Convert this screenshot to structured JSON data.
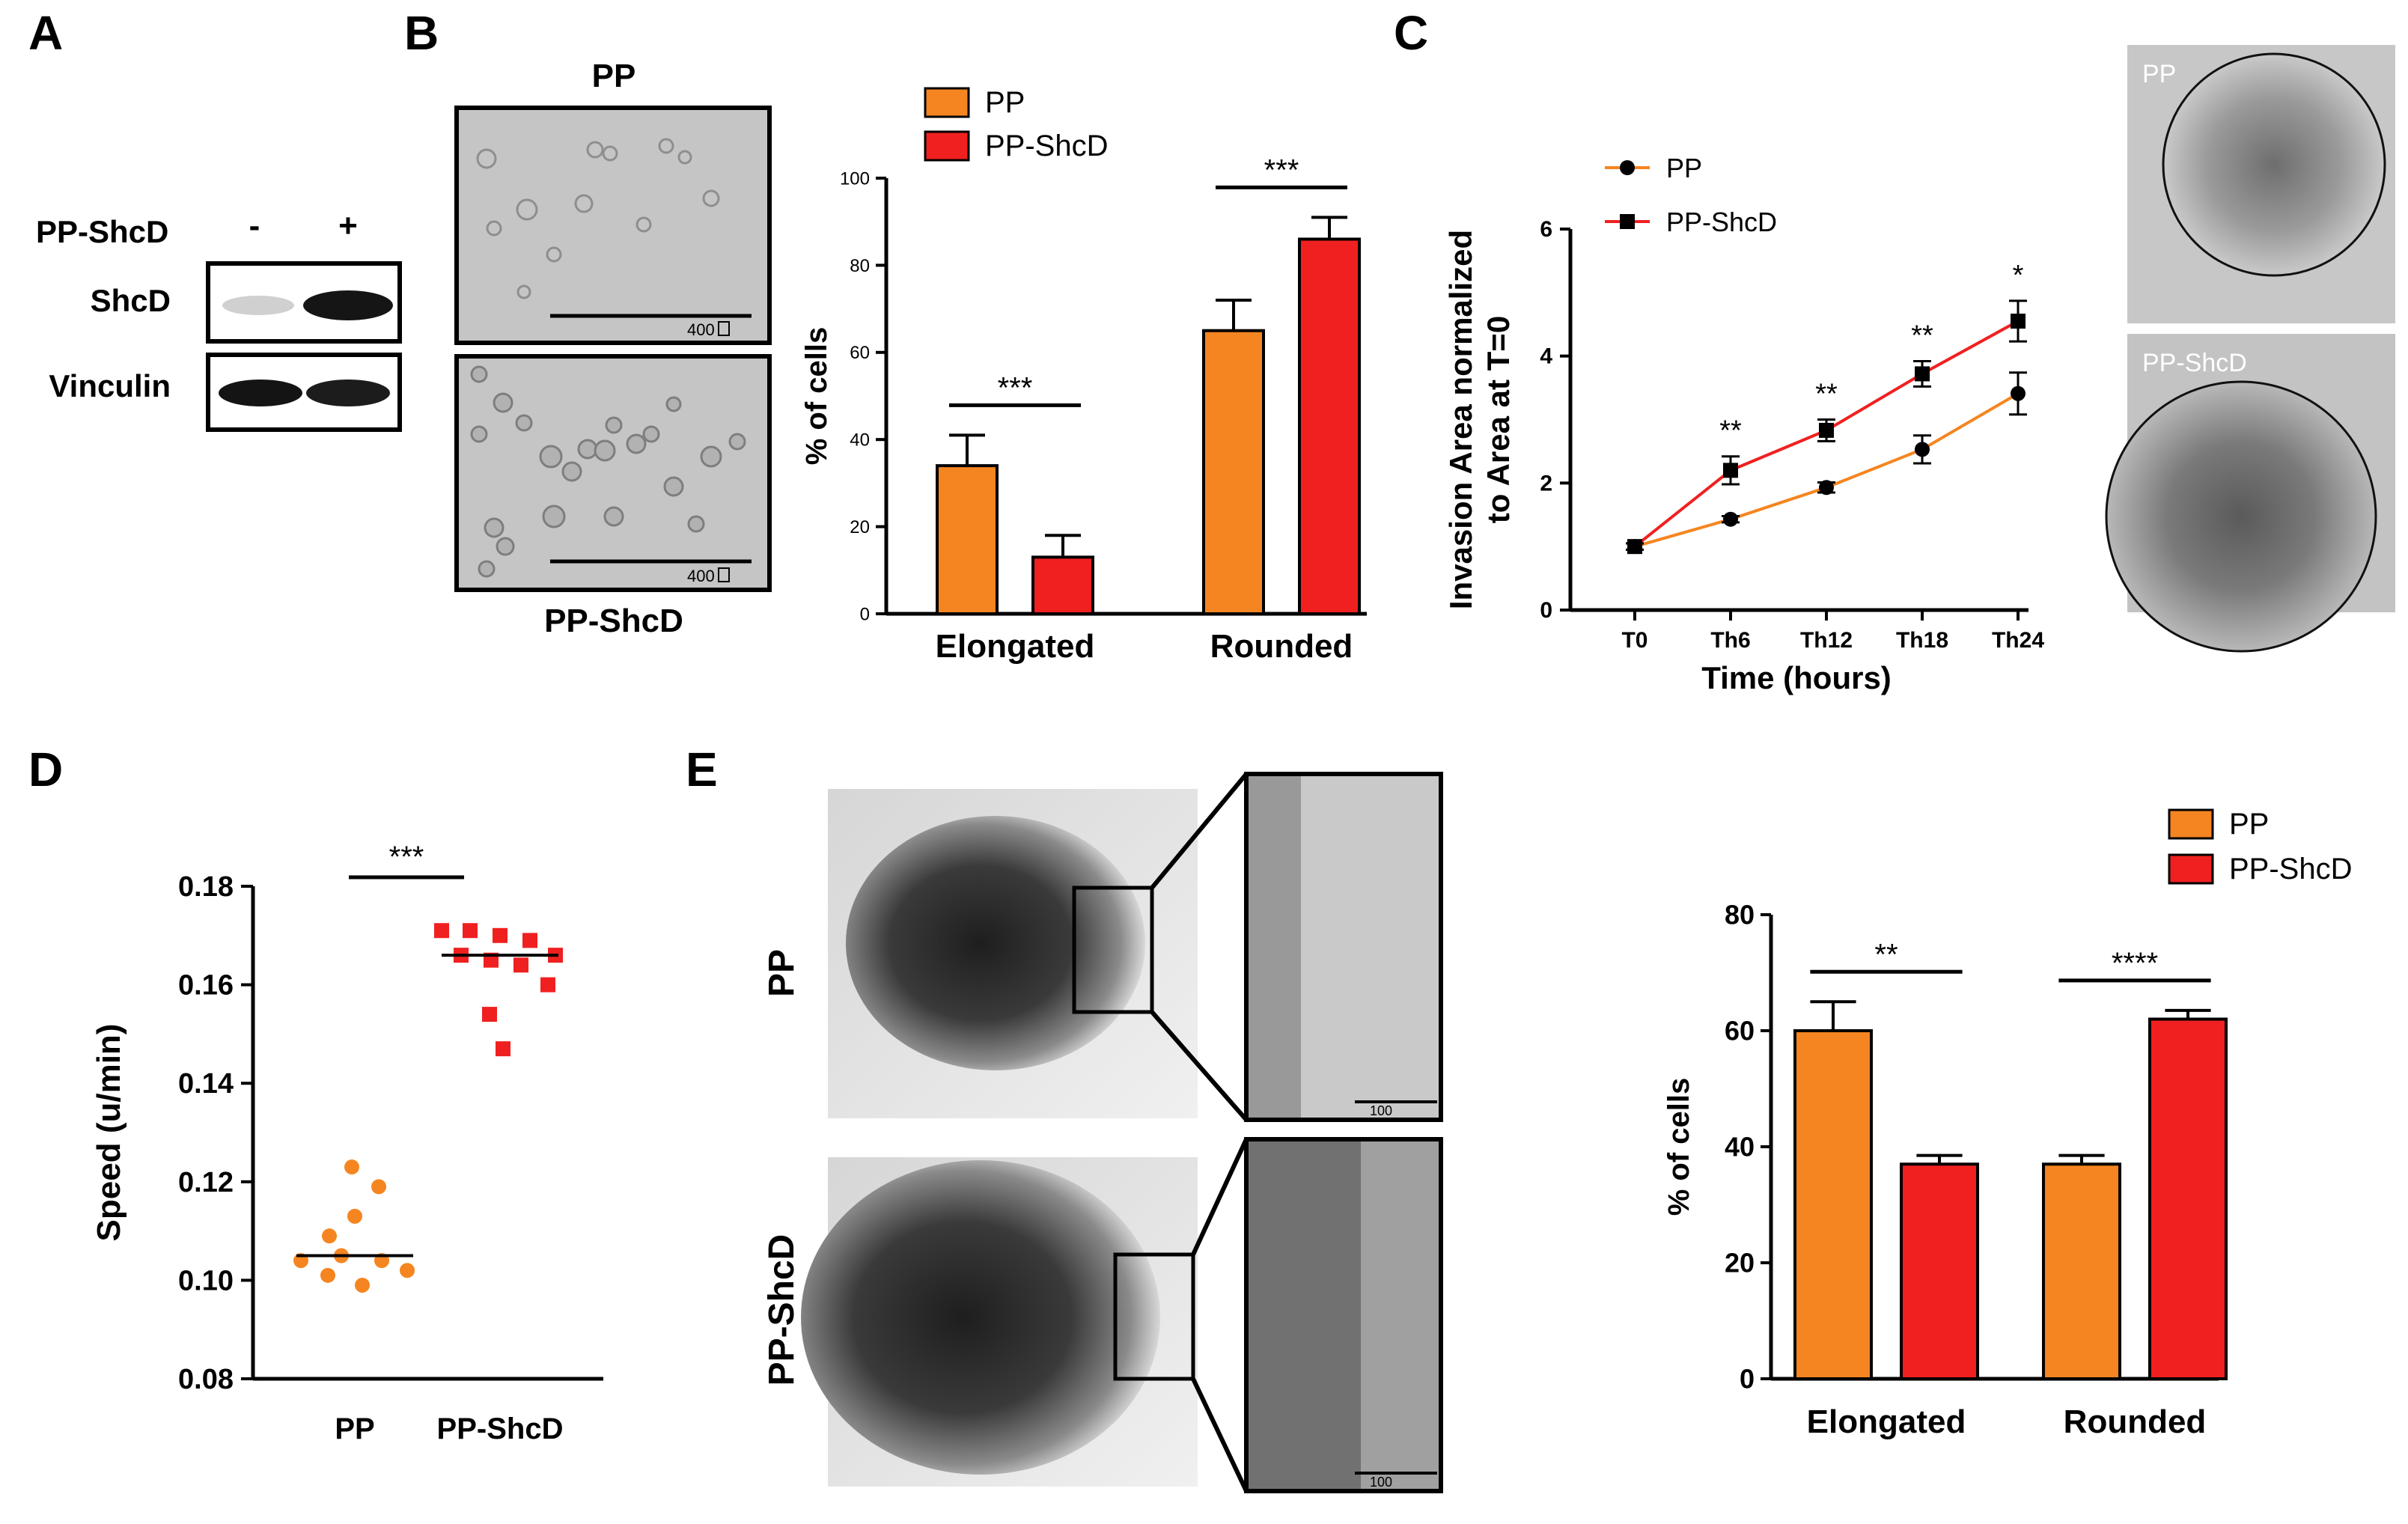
{
  "colors": {
    "pp": "#f58520",
    "ppshcd": "#f02020",
    "black": "#000000"
  },
  "panels": {
    "a": "A",
    "b": "B",
    "c": "C",
    "d": "D",
    "e": "E"
  },
  "panel_a": {
    "row_label": "PP-ShcD",
    "lane_minus": "-",
    "lane_plus": "+",
    "blot_1": "ShcD",
    "blot_2": "Vinculin"
  },
  "panel_b": {
    "img_top_label": "PP",
    "img_bottom_label": "PP-ShcD",
    "scale_top": "400",
    "scale_bottom": "400"
  },
  "panel_c": {
    "img_top_label": "PP",
    "img_bottom_label": "PP-ShcD"
  },
  "panel_e": {
    "row_top_label": "PP",
    "row_bottom_label": "PP-ShcD",
    "scale_top": "100",
    "scale_bottom": "100"
  },
  "chart_data": [
    {
      "id": "b_bar",
      "type": "bar",
      "title": "",
      "xlabel": "",
      "ylabel": "% of cells",
      "ylim": [
        0,
        100
      ],
      "yticks": [
        "0",
        "20",
        "40",
        "60",
        "80",
        "100"
      ],
      "categories": [
        "Elongated",
        "Rounded"
      ],
      "series": [
        {
          "name": "PP",
          "values": [
            34,
            65
          ],
          "errors": [
            7,
            7
          ]
        },
        {
          "name": "PP-ShcD",
          "values": [
            13,
            86
          ],
          "errors": [
            5,
            5
          ]
        }
      ],
      "annotations": [
        "***",
        "***"
      ],
      "legend": "top-left"
    },
    {
      "id": "c_line",
      "type": "line",
      "title": "",
      "xlabel": "Time (hours)",
      "ylabel_line1": "Invasion Area normalized",
      "ylabel_line2": "to Area at T=0",
      "ylim": [
        0,
        6
      ],
      "yticks": [
        "0",
        "2",
        "4",
        "6"
      ],
      "categories": [
        "T0",
        "Th6",
        "Th12",
        "Th18",
        "Th24"
      ],
      "series": [
        {
          "name": "PP",
          "values": [
            1.0,
            1.43,
            1.93,
            2.53,
            3.41
          ],
          "errors": [
            0.05,
            0.05,
            0.08,
            0.22,
            0.33
          ]
        },
        {
          "name": "PP-ShcD",
          "values": [
            1.0,
            2.2,
            2.83,
            3.72,
            4.55
          ],
          "errors": [
            0.05,
            0.22,
            0.17,
            0.2,
            0.32
          ]
        }
      ],
      "annotations": [
        "**",
        "**",
        "**",
        "*"
      ],
      "legend": "top-left"
    },
    {
      "id": "d_scatter",
      "type": "scatter",
      "title": "",
      "xlabel": "",
      "ylabel": "Speed (u/min)",
      "ylim": [
        0.08,
        0.18
      ],
      "yticks": [
        "0.08",
        "0.10",
        "0.12",
        "0.14",
        "0.16",
        "0.18"
      ],
      "categories": [
        "PP",
        "PP-ShcD"
      ],
      "series": [
        {
          "name": "PP",
          "values": [
            0.123,
            0.119,
            0.113,
            0.109,
            0.104,
            0.105,
            0.104,
            0.102,
            0.101,
            0.099
          ],
          "median": 0.105
        },
        {
          "name": "PP-ShcD",
          "values": [
            0.171,
            0.171,
            0.17,
            0.169,
            0.166,
            0.166,
            0.165,
            0.164,
            0.16,
            0.154,
            0.147
          ],
          "median": 0.166
        }
      ],
      "annotation": "***"
    },
    {
      "id": "e_bar",
      "type": "bar",
      "title": "",
      "xlabel": "",
      "ylabel": "% of cells",
      "ylim": [
        0,
        80
      ],
      "yticks": [
        "0",
        "20",
        "40",
        "60",
        "80"
      ],
      "categories": [
        "Elongated",
        "Rounded"
      ],
      "series": [
        {
          "name": "PP",
          "values": [
            60,
            37
          ],
          "errors": [
            5,
            1.5
          ]
        },
        {
          "name": "PP-ShcD",
          "values": [
            37,
            62
          ],
          "errors": [
            1.5,
            1.5
          ]
        }
      ],
      "annotations": [
        "**",
        "****"
      ],
      "legend": "top-right"
    }
  ]
}
